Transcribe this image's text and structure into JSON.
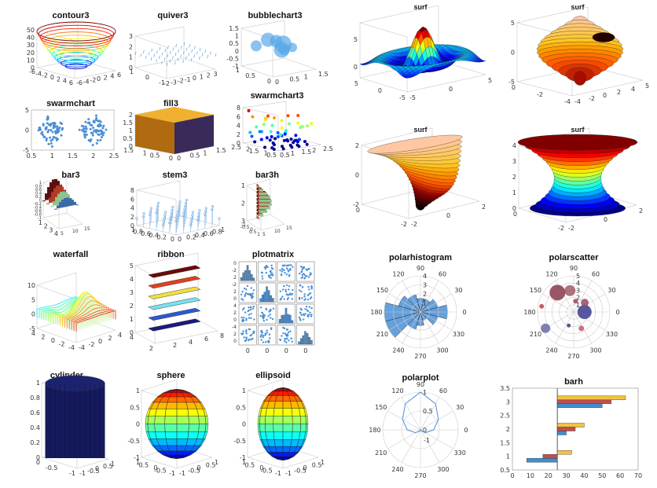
{
  "titles": {
    "contour3": "contour3",
    "quiver3": "quiver3",
    "bubblechart3": "bubblechart3",
    "swarmchart": "swarmchart",
    "fill3": "fill3",
    "swarmchart3": "swarmchart3",
    "bar3": "bar3",
    "stem3": "stem3",
    "bar3h": "bar3h",
    "waterfall": "waterfall",
    "ribbon": "ribbon",
    "plotmatrix": "plotmatrix",
    "cylinder": "cylinder",
    "sphere": "sphere",
    "ellipsoid": "ellipsoid",
    "surf1": "surf",
    "surf2": "surf",
    "surf3": "surf",
    "surf4": "surf",
    "polarhistogram": "polarhistogram",
    "polarscatter": "polarscatter",
    "polarplot": "polarplot",
    "barh": "barh"
  },
  "ticks": {
    "contour3_z": [
      "50",
      "40",
      "30",
      "20",
      "10",
      "0"
    ],
    "contour3_x": [
      "6",
      "4",
      "2",
      "0",
      "-2",
      "-4",
      "-6"
    ],
    "contour3_y": [
      "-6",
      "-4",
      "-2",
      "0",
      "2",
      "4",
      "6"
    ],
    "quiver3_z": [
      "3",
      "2",
      "1",
      "0"
    ],
    "quiver3_x": [
      "1",
      "0",
      "-1"
    ],
    "quiver3_y": [
      "-2",
      "-3",
      "-2",
      "-1",
      "0",
      "1",
      "2",
      "3"
    ],
    "bubble_z": [
      "1.5",
      "1",
      "0.5",
      "0",
      "-0.5",
      "-1"
    ],
    "bubble_x": [
      "1",
      "0.5",
      "0"
    ],
    "bubble_y": [
      "0",
      "0.5",
      "1",
      "1.5"
    ],
    "swarm_y": [
      "5",
      "0",
      "-5"
    ],
    "swarm_x": [
      "0.5",
      "1",
      "1.5",
      "2",
      "2.5"
    ],
    "fill3_z": [
      "2",
      "1.5",
      "1",
      "0.5",
      "0"
    ],
    "fill3_x": [
      "1.5",
      "1",
      "0.5",
      "0"
    ],
    "fill3_y": [
      "0",
      "0.5",
      "1",
      "1.5"
    ],
    "swarm3_z": [
      "8",
      "6",
      "4",
      "2",
      "0"
    ],
    "swarm3_x": [
      "2.5",
      "2",
      "1.5",
      "1",
      "0.5"
    ],
    "swarm3_y": [
      "0.5",
      "1",
      "1.5",
      "2",
      "2.5"
    ],
    "bar3_z": [
      "1",
      "0.8",
      "0.6",
      "0.4",
      "0.2",
      "0",
      "-0.2",
      "-0.4",
      "-0.6",
      "-0.8",
      "-1"
    ],
    "bar3_x": [
      "5",
      "10",
      "15"
    ],
    "bar3_y": [
      "1",
      "2",
      "3",
      "4"
    ],
    "stem3_z": [
      "8",
      "6",
      "4",
      "2",
      "0"
    ],
    "stem3_x": [
      "1",
      "0.8",
      "0.6",
      "0.4",
      "0.2",
      "0"
    ],
    "stem3_y": [
      "0",
      "0.2",
      "0.4",
      "0.6",
      "0.8",
      "1"
    ],
    "bar3h_z": [
      "1",
      "2",
      "3"
    ],
    "bar3h_x": [
      "-1",
      "-0.5",
      "0",
      "0.5",
      "1"
    ],
    "bar3h_y": [
      "5",
      "10",
      "15"
    ],
    "wf_z": [
      "10",
      "5",
      "0",
      "-5"
    ],
    "wf_x": [
      "4",
      "2",
      "0",
      "-2",
      "-4"
    ],
    "wf_y": [
      "-4",
      "-2",
      "0",
      "2",
      "4"
    ],
    "rib_z": [
      "5",
      "4",
      "3",
      "2",
      "1",
      "0"
    ],
    "rib_x": [
      "4",
      "2"
    ],
    "rib_y": [
      "2",
      "4",
      "6",
      "8"
    ],
    "pm_y": [
      "0",
      "-2",
      "2",
      "0",
      "-2",
      "2",
      "0",
      "-2",
      "4",
      "2",
      "0",
      "-2",
      "-4",
      "2",
      "0",
      "-2"
    ],
    "pm_x": [
      "0",
      "0",
      "0",
      "0"
    ],
    "cyl_z": [
      "1",
      "0.8",
      "0.6",
      "0.4",
      "0.2",
      "0"
    ],
    "cyl_x": [
      "0",
      "-0.5",
      "-1"
    ],
    "cyl_y": [
      "-1",
      "-0.5",
      "0",
      "0.5",
      "1"
    ],
    "sph_z": [
      "1",
      "0.5",
      "0",
      "-0.5",
      "-1"
    ],
    "sph_x": [
      "1",
      "0.5",
      "0",
      "-0.5",
      "-1"
    ],
    "sph_y": [
      "-1",
      "-0.5",
      "0",
      "0.5",
      "1"
    ],
    "ell_z": [
      "1",
      "0.5",
      "0",
      "-0.5",
      "-1"
    ],
    "ell_x": [
      "1",
      "0.5",
      "0",
      "-0.5",
      "-1"
    ],
    "ell_y": [
      "-1",
      "-0.5",
      "0",
      "0.5",
      "1"
    ],
    "s1_z": [
      "5",
      "0"
    ],
    "s1_x": [
      "5",
      "0",
      "-5"
    ],
    "s1_y": [
      "-5",
      "0",
      "5"
    ],
    "s2_z": [
      "5",
      "0",
      "-5"
    ],
    "s2_x": [
      "0",
      "-2",
      "-4"
    ],
    "s2_y": [
      "-4",
      "-2",
      "0",
      "2",
      "4",
      "5"
    ],
    "s3_z": [
      "2",
      "0",
      "-2"
    ],
    "s3_x": [
      "0",
      "-2"
    ],
    "s3_y": [
      "-2",
      "0",
      "2"
    ],
    "s4_z": [
      "4",
      "3",
      "2",
      "1",
      "0"
    ],
    "s4_x": [
      "0",
      "-2"
    ],
    "s4_y": [
      "-2",
      "0",
      "2"
    ]
  },
  "polar_angles": [
    "90",
    "60",
    "30",
    "0",
    "330",
    "300",
    "270",
    "240",
    "210",
    "180",
    "150",
    "120"
  ],
  "polarhist_r": [
    "1",
    "2",
    "3",
    "4"
  ],
  "polarscatter_r": [
    "1",
    "2",
    "3",
    "4",
    "5"
  ],
  "polarplot_r": [
    "0",
    "0.5",
    "1"
  ],
  "polarplot_center_label": "-1",
  "colors": {
    "blue": "#4a8fd6",
    "accent_red": "#c0504d",
    "bar_yellow": "#f5c342",
    "bar_blue": "#3f8fd0",
    "dark_navy": "#141a5c"
  },
  "chart_data": [
    {
      "type": "bar",
      "title": "barh",
      "orientation": "horizontal",
      "categories": [
        "1",
        "2",
        "3"
      ],
      "series": [
        {
          "values": [
            8,
            30,
            50
          ]
        },
        {
          "values": [
            17,
            35,
            55
          ]
        },
        {
          "values": [
            33,
            40,
            63
          ]
        }
      ],
      "xlim": [
        0,
        70
      ],
      "ylim": [
        0.5,
        3.5
      ],
      "baseline": 25,
      "xticks": [
        "0",
        "10",
        "20",
        "30",
        "40",
        "50",
        "60",
        "70"
      ],
      "yticks": [
        "0.5",
        "1",
        "1.5",
        "2",
        "2.5",
        "3",
        "3.5"
      ]
    },
    {
      "type": "bar",
      "title": "polarhistogram",
      "coordinate": "polar",
      "bin_angles_deg": [
        0,
        30,
        60,
        90,
        120,
        150,
        180,
        210,
        240,
        270,
        300,
        330
      ],
      "values": [
        3,
        2,
        1.5,
        1.5,
        2,
        2.5,
        4,
        4,
        2,
        1.5,
        1,
        2
      ]
    },
    {
      "type": "scatter",
      "title": "polarscatter",
      "coordinate": "polar",
      "points": [
        {
          "theta": 0,
          "r": 1.5,
          "size": 9,
          "color": "#3b3b8f"
        },
        {
          "theta": 100,
          "r": 3,
          "size": 7,
          "color": "#a05a6a"
        },
        {
          "theta": 130,
          "r": 3.5,
          "size": 10,
          "color": "#8a3a4a"
        },
        {
          "theta": 170,
          "r": 4.5,
          "size": 3,
          "color": "#c04050"
        },
        {
          "theta": 210,
          "r": 4.5,
          "size": 6,
          "color": "#6a6aa8"
        },
        {
          "theta": 250,
          "r": 2,
          "size": 2.5,
          "color": "#3a3a8a"
        },
        {
          "theta": 295,
          "r": 2.5,
          "size": 3.5,
          "color": "#c05a6a"
        },
        {
          "theta": 40,
          "r": 2,
          "size": 5,
          "color": "#9a4a60"
        },
        {
          "theta": 80,
          "r": 1.5,
          "size": 3,
          "color": "#a04050"
        }
      ]
    },
    {
      "type": "line",
      "title": "polarplot",
      "coordinate": "polar",
      "theta_deg": [
        0,
        30,
        60,
        90,
        120,
        150,
        180,
        210,
        240,
        270,
        300,
        330,
        360
      ],
      "r": [
        0.35,
        0.55,
        0.8,
        1.0,
        0.8,
        0.55,
        0.35,
        0.15,
        0.03,
        0.0,
        0.03,
        0.15,
        0.35
      ]
    },
    {
      "type": "scatter",
      "title": "swarmchart",
      "xlim": [
        0.5,
        2.5
      ],
      "ylim": [
        -5,
        5
      ],
      "x": [
        1,
        2
      ],
      "spread": 0.35
    }
  ]
}
